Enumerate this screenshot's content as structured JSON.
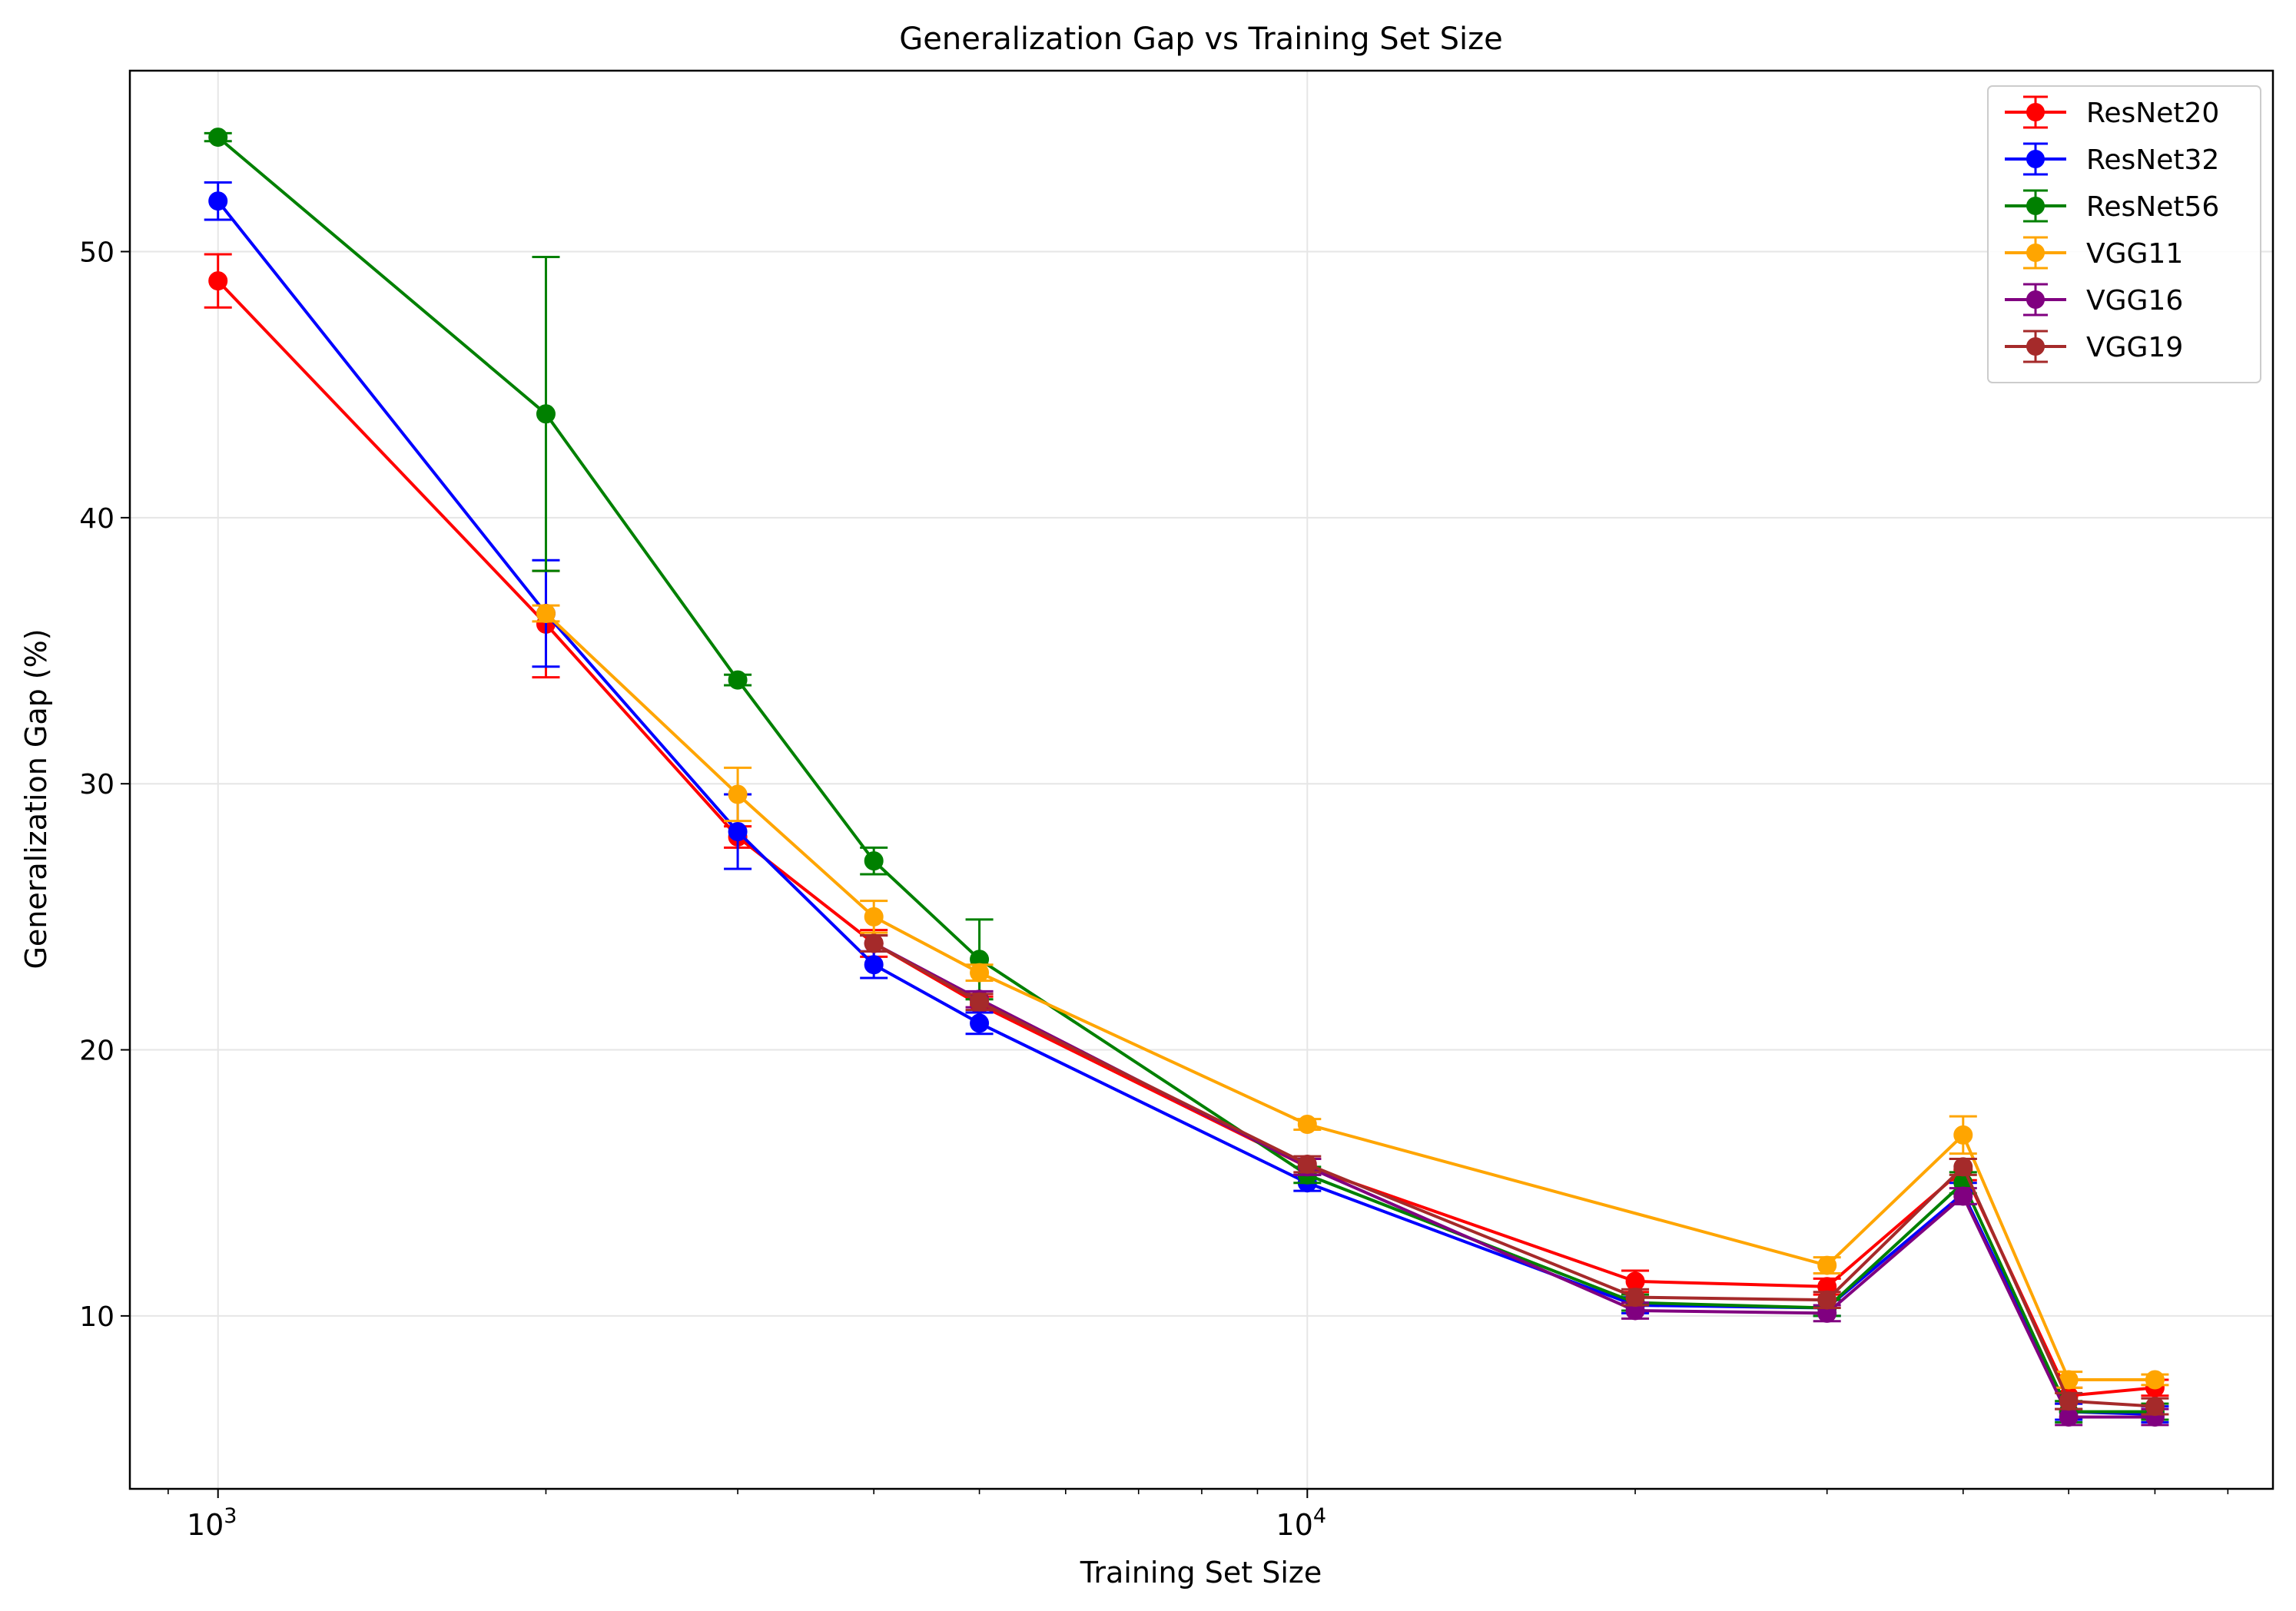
{
  "chart_data": {
    "type": "line",
    "title": "Generalization Gap vs Training Set Size",
    "xlabel": "Training Set Size",
    "ylabel": "Generalization Gap (%)",
    "x_scale": "log",
    "xlim": [
      830,
      77000
    ],
    "ylim": [
      3.5,
      56.8
    ],
    "x_major_ticks": [
      {
        "value": 1000,
        "base": "10",
        "exp": "3"
      },
      {
        "value": 10000,
        "base": "10",
        "exp": "4"
      }
    ],
    "x_minor_ticks": [
      900,
      2000,
      3000,
      4000,
      5000,
      6000,
      7000,
      8000,
      9000,
      20000,
      30000,
      40000,
      50000,
      60000,
      70000
    ],
    "y_ticks": [
      10,
      20,
      30,
      40,
      50
    ],
    "grid": true,
    "legend_position": "top-right",
    "x": [
      1000,
      2000,
      3000,
      4000,
      5000,
      10000,
      20000,
      30000,
      40000,
      50000,
      60000
    ],
    "series": [
      {
        "name": "ResNet20",
        "color": "#ff0000",
        "y": [
          48.9,
          36.0,
          28.0,
          24.0,
          21.7,
          15.6,
          11.3,
          11.1,
          15.5,
          7.0,
          7.3
        ],
        "err": [
          1.0,
          2.0,
          0.4,
          0.5,
          0.3,
          0.3,
          0.4,
          0.3,
          0.4,
          0.3,
          0.3
        ]
      },
      {
        "name": "ResNet32",
        "color": "#0000ff",
        "y": [
          51.9,
          36.4,
          28.2,
          23.2,
          21.0,
          15.0,
          10.4,
          10.3,
          14.6,
          6.4,
          6.3
        ],
        "err": [
          0.7,
          2.0,
          1.4,
          0.5,
          0.4,
          0.3,
          0.3,
          0.3,
          0.4,
          0.3,
          0.3
        ]
      },
      {
        "name": "ResNet56",
        "color": "#008000",
        "y": [
          54.3,
          43.9,
          33.9,
          27.1,
          23.4,
          15.3,
          10.5,
          10.3,
          15.0,
          6.4,
          6.4
        ],
        "err": [
          0.15,
          5.9,
          0.2,
          0.5,
          1.5,
          0.3,
          0.3,
          0.3,
          0.4,
          0.4,
          0.3
        ]
      },
      {
        "name": "VGG11",
        "color": "#ffa500",
        "y": [
          null,
          36.4,
          29.6,
          25.0,
          22.9,
          17.2,
          null,
          11.9,
          16.8,
          7.6,
          7.6
        ],
        "err": [
          0,
          0.3,
          1.0,
          0.6,
          0.3,
          0.2,
          0,
          0.3,
          0.7,
          0.3,
          0.2
        ]
      },
      {
        "name": "VGG16",
        "color": "#800080",
        "y": [
          null,
          null,
          null,
          24.0,
          21.9,
          15.6,
          10.2,
          10.1,
          14.5,
          6.2,
          6.2
        ],
        "err": [
          0,
          0,
          0,
          0.3,
          0.3,
          0.3,
          0.3,
          0.3,
          0.3,
          0.3,
          0.3
        ]
      },
      {
        "name": "VGG19",
        "color": "#a52a2a",
        "y": [
          null,
          null,
          null,
          24.0,
          21.8,
          15.7,
          10.7,
          10.6,
          15.6,
          6.8,
          6.6
        ],
        "err": [
          0,
          0,
          0,
          0.3,
          0.3,
          0.3,
          0.3,
          0.3,
          0.3,
          0.3,
          0.3
        ]
      }
    ]
  }
}
